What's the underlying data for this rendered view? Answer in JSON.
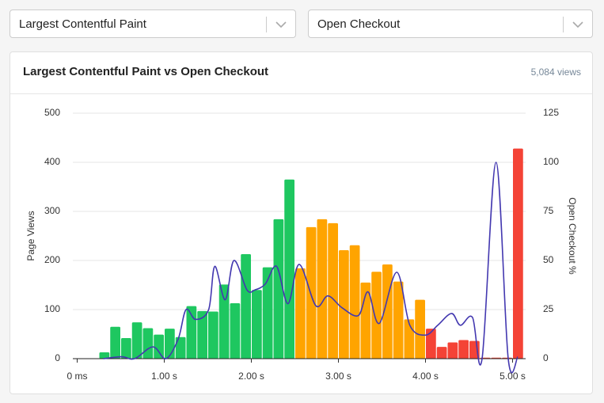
{
  "selectors": [
    "Largest Contentful Paint",
    "Open Checkout"
  ],
  "card": {
    "title": "Largest Contentful Paint vs Open Checkout",
    "views": "5,084 views"
  },
  "chart_data": {
    "type": "histogram",
    "bins": [
      0.25,
      0.375,
      0.5,
      0.625,
      0.75,
      0.875,
      1,
      1.125,
      1.25,
      1.375,
      1.5,
      1.625,
      1.75,
      1.875,
      2,
      2.125,
      2.25,
      2.375,
      2.5,
      2.625,
      2.75,
      2.875,
      3,
      3.125,
      3.25,
      3.375,
      3.5,
      3.625,
      3.75,
      3.875,
      4,
      4.125,
      4.25,
      4.375,
      4.5,
      4.625,
      4.75,
      4.875,
      5,
      5.125
    ],
    "values": [
      13,
      65,
      42,
      74,
      62,
      49,
      61,
      44,
      107,
      97,
      96,
      151,
      113,
      213,
      140,
      186,
      284,
      365,
      184,
      268,
      284,
      276,
      221,
      231,
      155,
      177,
      192,
      157,
      80,
      120,
      61,
      24,
      33,
      38,
      36,
      2,
      2,
      2,
      428
    ],
    "colors": [
      "#1ec760",
      "#1ec760",
      "#1ec760",
      "#1ec760",
      "#1ec760",
      "#1ec760",
      "#1ec760",
      "#1ec760",
      "#1ec760",
      "#1ec760",
      "#1ec760",
      "#1ec760",
      "#1ec760",
      "#1ec760",
      "#1ec760",
      "#1ec760",
      "#1ec760",
      "#1ec760",
      "#ffa400",
      "#ffa400",
      "#ffa400",
      "#ffa400",
      "#ffa400",
      "#ffa400",
      "#ffa400",
      "#ffa400",
      "#ffa400",
      "#ffa400",
      "#ffa400",
      "#ffa400",
      "#f44336",
      "#f44336",
      "#f44336",
      "#f44336",
      "#f44336",
      "#f44336",
      "#f44336",
      "#f44336",
      "#f44336"
    ],
    "ylabel": "Page Views",
    "y2label": "Open Checkout %",
    "xlim": [
      -0.05,
      5.15
    ],
    "xticks": [
      {
        "value": 0,
        "label": "0 ms"
      },
      {
        "value": 1,
        "label": "1.00 s"
      },
      {
        "value": 2,
        "label": "2.00 s"
      },
      {
        "value": 3,
        "label": "3.00 s"
      },
      {
        "value": 4,
        "label": "4.00 s"
      },
      {
        "value": 5,
        "label": "5.00 s"
      }
    ],
    "ylim": [
      0,
      500
    ],
    "yticks": [
      0,
      100,
      200,
      300,
      400,
      500
    ],
    "y2lim": [
      0,
      125
    ],
    "y2ticks": [
      0,
      25,
      50,
      75,
      100,
      125
    ],
    "grid": true,
    "line": {
      "type": "line",
      "axis": "y2",
      "color": "#4338b0",
      "x": [
        0.3,
        0.51,
        0.66,
        0.87,
        1.02,
        1.16,
        1.25,
        1.36,
        1.51,
        1.58,
        1.7,
        1.8,
        1.95,
        2.04,
        2.16,
        2.29,
        2.42,
        2.55,
        2.74,
        2.88,
        3.04,
        3.23,
        3.34,
        3.47,
        3.67,
        3.82,
        4.0,
        4.14,
        4.3,
        4.4,
        4.54,
        4.65,
        4.81,
        4.95,
        5.06
      ],
      "values": [
        0,
        1,
        0,
        6,
        0,
        10,
        25,
        20,
        25,
        47,
        30,
        50,
        35,
        35,
        38,
        47,
        28,
        48,
        27,
        32,
        26,
        22,
        34,
        18,
        44,
        17,
        12,
        17,
        23,
        17,
        21,
        0,
        100,
        0,
        1
      ]
    }
  }
}
